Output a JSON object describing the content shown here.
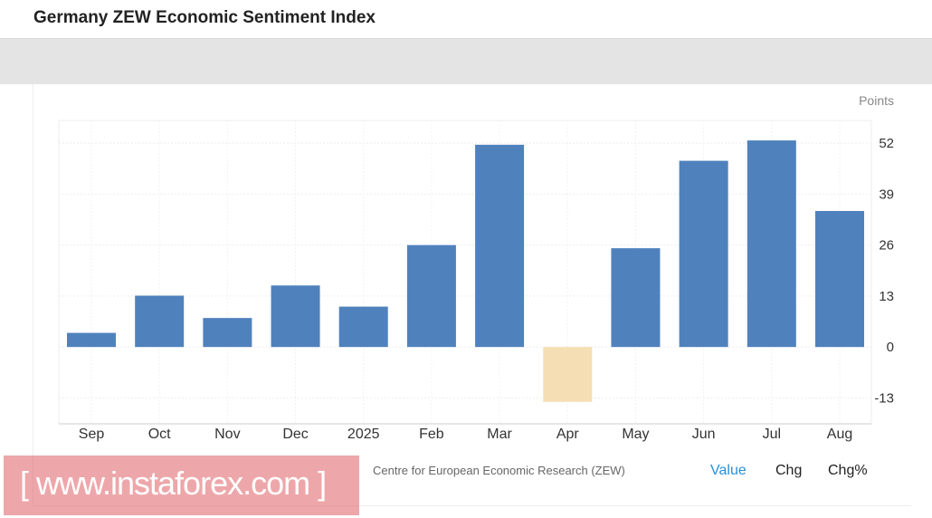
{
  "header": {
    "title": "Germany ZEW Economic Sentiment Index"
  },
  "chart_data": {
    "type": "bar",
    "title": "Germany ZEW Economic Sentiment Index",
    "ylabel": "Points",
    "categories": [
      "Sep",
      "Oct",
      "Nov",
      "Dec",
      "2025",
      "Feb",
      "Mar",
      "Apr",
      "May",
      "Jun",
      "Jul",
      "Aug"
    ],
    "values": [
      3.6,
      13.1,
      7.4,
      15.7,
      10.3,
      26.0,
      51.6,
      -14.0,
      25.2,
      47.5,
      52.7,
      34.7
    ],
    "yticks": [
      52,
      39,
      26,
      13,
      0,
      -13
    ],
    "ylim": [
      -19.6,
      57.8
    ],
    "grid": true,
    "colors": {
      "positive": "#4f81bd",
      "negative": "#f5deb3"
    }
  },
  "footer": {
    "source": "Centre for European Economic Research (ZEW)",
    "tabs": [
      "Value",
      "Chg",
      "Chg%"
    ]
  },
  "watermark": "[ www.instaforex.com ]"
}
